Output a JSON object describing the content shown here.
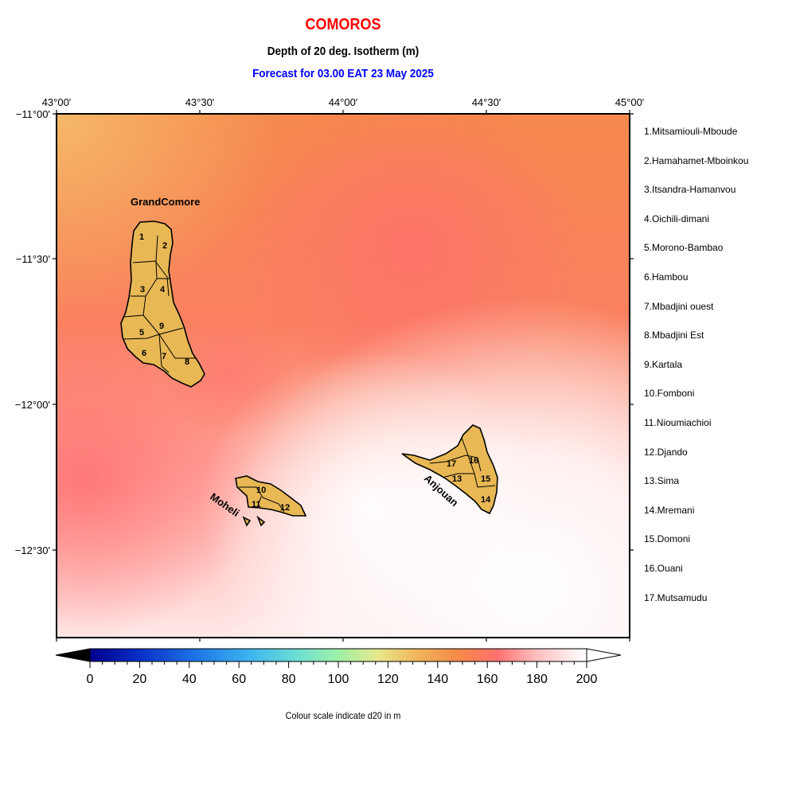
{
  "header": {
    "title": "COMOROS",
    "subtitle": "Depth of 20 deg. Isotherm (m)",
    "forecast": "Forecast for  03.00 EAT 23 May 2025"
  },
  "map": {
    "lon_ticks": [
      "43°00'",
      "43°30'",
      "44°00'",
      "44°30'",
      "45°00'"
    ],
    "lat_ticks": [
      "−11°00'",
      "−11°30'",
      "−12°00'",
      "−12°30'"
    ],
    "island_labels": [
      "GrandComore",
      "Moheli",
      "Anjouan"
    ],
    "region_numbers": [
      "1",
      "2",
      "3",
      "4",
      "5",
      "6",
      "7",
      "8",
      "9",
      "10",
      "11",
      "12",
      "13",
      "14",
      "15",
      "16",
      "17"
    ],
    "colors": {
      "land": "#e8b855",
      "title": "#ff0000",
      "forecast": "#0000ff"
    }
  },
  "regions": [
    "1.Mitsamiouli-Mboude",
    "2.Hamahamet-Mboinkou",
    "3.Itsandra-Hamanvou",
    "4.Oichili-dimani",
    "5.Morono-Bambao",
    "6.Hambou",
    "7.Mbadjini ouest",
    "8.Mbadjini Est",
    "9.Kartala",
    "10.Fomboni",
    "11.Nioumiachioi",
    "12.Djando",
    "13.Sima",
    "14.Mremani",
    "15.Domoni",
    "16.Ouani",
    "17.Mutsamudu"
  ],
  "colorbar": {
    "ticks": [
      "0",
      "20",
      "40",
      "60",
      "80",
      "100",
      "120",
      "140",
      "160",
      "180",
      "200"
    ],
    "caption": "Colour scale indicate d20 in m"
  }
}
